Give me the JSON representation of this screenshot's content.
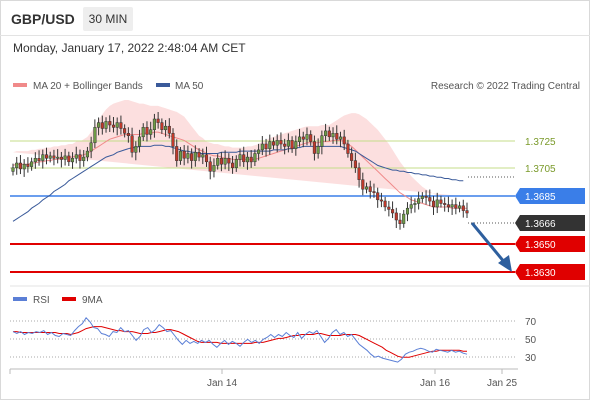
{
  "header": {
    "symbol": "GBP/USD",
    "timeframe": "30 MIN",
    "datetime": "Monday, January 17, 2022 2:48:04 AM CET",
    "copyright": "Research © 2022 Trading Central"
  },
  "colors": {
    "bollinger": "#f08a8a",
    "ma50": "#3a5a9a",
    "pivot": "#3a7ee8",
    "support": "#e00000",
    "current": "#333333",
    "resistance": "#9bc44a",
    "rsi": "#5b7fd6",
    "rsi_ma": "#e00000",
    "arrow": "#2e5f9e"
  },
  "chart_data": [
    {
      "type": "candlestick",
      "legend": [
        {
          "name": "MA 20 + Bollinger Bands",
          "color": "#f08a8a"
        },
        {
          "name": "MA 50",
          "color": "#3a5a9a"
        }
      ],
      "ylim": [
        1.3618,
        1.3761
      ],
      "levels": [
        {
          "value": "1.3725",
          "kind": "resistance"
        },
        {
          "value": "1.3705",
          "kind": "resistance"
        },
        {
          "value": "1.3685",
          "kind": "pivot"
        },
        {
          "value": "1.3666",
          "kind": "current"
        },
        {
          "value": "1.3650",
          "kind": "support"
        },
        {
          "value": "1.3630",
          "kind": "support"
        }
      ],
      "x_ticks": [
        "Jan 14",
        "Jan 16",
        "Jan 25"
      ],
      "close": [
        1.3704,
        1.3708,
        1.3703,
        1.3707,
        1.3705,
        1.3709,
        1.3712,
        1.371,
        1.3715,
        1.3712,
        1.3714,
        1.3712,
        1.3713,
        1.3711,
        1.3714,
        1.3709,
        1.3712,
        1.3715,
        1.371,
        1.3713,
        1.3718,
        1.3725,
        1.3738,
        1.3742,
        1.3737,
        1.3743,
        1.374,
        1.3738,
        1.3742,
        1.3737,
        1.3733,
        1.3731,
        1.3717,
        1.3722,
        1.373,
        1.3738,
        1.3732,
        1.3736,
        1.3745,
        1.3742,
        1.3736,
        1.3739,
        1.3733,
        1.3722,
        1.371,
        1.3718,
        1.3712,
        1.3716,
        1.371,
        1.3717,
        1.3713,
        1.3715,
        1.3709,
        1.3701,
        1.3706,
        1.3712,
        1.3707,
        1.3712,
        1.3708,
        1.3704,
        1.3711,
        1.3715,
        1.3709,
        1.3713,
        1.3709,
        1.3716,
        1.3719,
        1.3724,
        1.372,
        1.3726,
        1.3723,
        1.3727,
        1.3724,
        1.3722,
        1.3727,
        1.372,
        1.3726,
        1.373,
        1.3728,
        1.3732,
        1.3726,
        1.3716,
        1.3722,
        1.3731,
        1.3735,
        1.373,
        1.3733,
        1.3728,
        1.373,
        1.3724,
        1.3716,
        1.371,
        1.3704,
        1.3694,
        1.3686,
        1.3688,
        1.3684,
        1.3683,
        1.3677,
        1.3676,
        1.3671,
        1.3669,
        1.3666,
        1.366,
        1.3657,
        1.3665,
        1.367,
        1.3673,
        1.3674,
        1.3678,
        1.368,
        1.3679,
        1.3676,
        1.3671,
        1.3677,
        1.3674,
        1.3673,
        1.3671,
        1.3673,
        1.367,
        1.3672,
        1.3668,
        1.3666
      ],
      "ma50": [
        1.3659,
        1.3661,
        1.3663,
        1.3665,
        1.3667,
        1.367,
        1.3672,
        1.3674,
        1.3677,
        1.3679,
        1.3681,
        1.3684,
        1.3686,
        1.3688,
        1.369,
        1.3693,
        1.3695,
        1.3697,
        1.3699,
        1.3701,
        1.3703,
        1.3705,
        1.3707,
        1.3709,
        1.3711,
        1.3713,
        1.3714,
        1.3715,
        1.3717,
        1.3718,
        1.3719,
        1.372,
        1.3721,
        1.3721,
        1.3722,
        1.3722,
        1.3722,
        1.3722,
        1.3723,
        1.3723,
        1.3723,
        1.3722,
        1.3722,
        1.3721,
        1.372,
        1.3719,
        1.3718,
        1.3718,
        1.3717,
        1.3717,
        1.3716,
        1.3716,
        1.3716,
        1.3716,
        1.3716,
        1.3716,
        1.3717,
        1.3717,
        1.3717,
        1.3717,
        1.3717,
        1.3718,
        1.3718,
        1.3718,
        1.3718,
        1.3718,
        1.3718,
        1.3718,
        1.3718,
        1.3718,
        1.3719,
        1.3719,
        1.3719,
        1.3719,
        1.372,
        1.372,
        1.3721,
        1.3721,
        1.3722,
        1.3722,
        1.3722,
        1.3722,
        1.3722,
        1.3722,
        1.3722,
        1.3722,
        1.3722,
        1.3722,
        1.3722,
        1.3721,
        1.372,
        1.3719,
        1.3718,
        1.3716,
        1.3714,
        1.3712,
        1.371,
        1.3708,
        1.3706,
        1.3705,
        1.3704,
        1.3703,
        1.3702,
        1.3702,
        1.3701,
        1.3701,
        1.37,
        1.37,
        1.3699,
        1.3699,
        1.3698,
        1.3698,
        1.3697,
        1.3697,
        1.3696,
        1.3696,
        1.3695,
        1.3695,
        1.3694,
        1.3694,
        1.3693,
        1.3693
      ],
      "bb_mid": [
        1.3706,
        1.3707,
        1.3707,
        1.3707,
        1.3707,
        1.3708,
        1.3708,
        1.3709,
        1.3709,
        1.371,
        1.371,
        1.3711,
        1.3711,
        1.3712,
        1.3712,
        1.3713,
        1.3713,
        1.3714,
        1.3714,
        1.3715,
        1.3716,
        1.3718,
        1.372,
        1.3722,
        1.3724,
        1.3726,
        1.3728,
        1.3729,
        1.373,
        1.3731,
        1.3732,
        1.3732,
        1.3732,
        1.3732,
        1.3732,
        1.3733,
        1.3733,
        1.3733,
        1.3734,
        1.3734,
        1.3733,
        1.3732,
        1.3731,
        1.373,
        1.3729,
        1.3728,
        1.3727,
        1.3725,
        1.3723,
        1.3721,
        1.3719,
        1.3718,
        1.3716,
        1.3715,
        1.3714,
        1.3714,
        1.3713,
        1.3712,
        1.3712,
        1.3711,
        1.3711,
        1.3711,
        1.3711,
        1.3711,
        1.3711,
        1.3711,
        1.3712,
        1.3713,
        1.3714,
        1.3715,
        1.3716,
        1.3717,
        1.3718,
        1.3719,
        1.372,
        1.3721,
        1.3722,
        1.3723,
        1.3724,
        1.3725,
        1.3725,
        1.3725,
        1.3725,
        1.3726,
        1.3726,
        1.3726,
        1.3727,
        1.3727,
        1.3727,
        1.3726,
        1.3724,
        1.3722,
        1.3719,
        1.3716,
        1.3713,
        1.371,
        1.3707,
        1.3704,
        1.3701,
        1.3698,
        1.3695,
        1.3692,
        1.3689,
        1.3686,
        1.3683,
        1.3681,
        1.3679,
        1.3677,
        1.3676,
        1.3675,
        1.3674,
        1.3673,
        1.3672,
        1.3671,
        1.3671,
        1.3671,
        1.3671,
        1.3671,
        1.367,
        1.367,
        1.367,
        1.367,
        1.367
      ],
      "bb_width": [
        0.0011,
        0.0011,
        0.0011,
        0.0011,
        0.0011,
        0.0011,
        0.0011,
        0.0011,
        0.0011,
        0.0011,
        0.0011,
        0.0011,
        0.0011,
        0.0011,
        0.0011,
        0.0011,
        0.0011,
        0.0012,
        0.0012,
        0.0013,
        0.0014,
        0.0016,
        0.0019,
        0.0022,
        0.0025,
        0.0027,
        0.0028,
        0.0029,
        0.0029,
        0.0029,
        0.0029,
        0.0029,
        0.0028,
        0.0027,
        0.0026,
        0.0025,
        0.0024,
        0.0023,
        0.0022,
        0.0022,
        0.0022,
        0.0022,
        0.0022,
        0.0022,
        0.0022,
        0.0021,
        0.002,
        0.0018,
        0.0016,
        0.0014,
        0.0012,
        0.0011,
        0.001,
        0.001,
        0.001,
        0.001,
        0.001,
        0.001,
        0.001,
        0.001,
        0.001,
        0.001,
        0.001,
        0.0011,
        0.0011,
        0.0012,
        0.0012,
        0.0013,
        0.0013,
        0.0014,
        0.0014,
        0.0014,
        0.0014,
        0.0014,
        0.0014,
        0.0014,
        0.0014,
        0.0014,
        0.0014,
        0.0014,
        0.0014,
        0.0014,
        0.0014,
        0.0014,
        0.0014,
        0.0014,
        0.0015,
        0.0017,
        0.0019,
        0.0022,
        0.0025,
        0.0028,
        0.0031,
        0.0033,
        0.0034,
        0.0035,
        0.0035,
        0.0035,
        0.0035,
        0.0034,
        0.0033,
        0.0032,
        0.003,
        0.0028,
        0.0026,
        0.0024,
        0.0022,
        0.002,
        0.0018,
        0.0016,
        0.0014,
        0.0013,
        0.0012,
        0.0011,
        0.001,
        0.001,
        0.001,
        0.001,
        0.001,
        0.001,
        0.001,
        0.001
      ]
    },
    {
      "type": "line",
      "legend": [
        {
          "name": "RSI",
          "color": "#5b7fd6"
        },
        {
          "name": "9MA",
          "color": "#e00000"
        }
      ],
      "ylim": [
        20,
        85
      ],
      "y_ticks": [
        "70",
        "50",
        "30"
      ],
      "rsi": [
        56,
        54,
        56,
        53,
        55,
        54,
        56,
        55,
        57,
        53,
        55,
        52,
        51,
        54,
        53,
        52,
        57,
        61,
        64,
        70,
        66,
        60,
        59,
        54,
        53,
        51,
        56,
        55,
        60,
        56,
        57,
        52,
        47,
        51,
        58,
        60,
        55,
        58,
        63,
        60,
        56,
        57,
        52,
        47,
        43,
        47,
        44,
        46,
        44,
        47,
        45,
        47,
        43,
        40,
        44,
        47,
        43,
        46,
        44,
        41,
        45,
        48,
        45,
        47,
        44,
        48,
        50,
        53,
        50,
        53,
        51,
        55,
        52,
        50,
        55,
        49,
        53,
        56,
        54,
        57,
        51,
        45,
        49,
        55,
        58,
        53,
        55,
        51,
        53,
        48,
        43,
        40,
        37,
        33,
        30,
        31,
        29,
        28,
        27,
        26,
        25,
        28,
        33,
        35,
        36,
        38,
        39,
        38,
        36,
        35,
        38,
        37,
        36,
        35,
        37,
        35,
        36,
        34,
        33
      ],
      "rsi_ma": [
        56,
        56,
        55,
        55,
        55,
        55,
        55,
        55,
        55,
        55,
        55,
        55,
        54,
        54,
        54,
        53,
        54,
        55,
        57,
        59,
        60,
        61,
        61,
        61,
        60,
        59,
        58,
        57,
        57,
        56,
        56,
        56,
        55,
        54,
        54,
        54,
        55,
        55,
        56,
        57,
        58,
        58,
        57,
        56,
        54,
        52,
        50,
        48,
        46,
        45,
        45,
        45,
        45,
        45,
        44,
        44,
        44,
        44,
        44,
        44,
        44,
        44,
        44,
        45,
        45,
        45,
        46,
        47,
        48,
        49,
        49,
        50,
        51,
        52,
        52,
        53,
        53,
        53,
        53,
        54,
        54,
        53,
        52,
        52,
        52,
        52,
        53,
        53,
        53,
        53,
        52,
        50,
        48,
        46,
        44,
        42,
        40,
        37,
        35,
        33,
        31,
        30,
        30,
        30,
        31,
        32,
        33,
        34,
        35,
        36,
        36,
        37,
        37,
        37,
        37,
        37,
        37,
        36,
        36
      ]
    }
  ]
}
